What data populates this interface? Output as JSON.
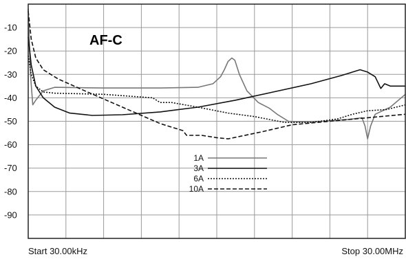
{
  "chart_data": {
    "type": "line",
    "title": "AF-C",
    "xlabel": "",
    "ylabel": "",
    "x_start_label": "Start 30.00kHz",
    "x_stop_label": "Stop 30.00MHz",
    "xlim": [
      0,
      1
    ],
    "ylim": [
      -100,
      0
    ],
    "y_ticks": [
      -10,
      -20,
      -30,
      -40,
      -50,
      -60,
      -70,
      -80,
      -90
    ],
    "grid": true,
    "legend_position": "center-bottom",
    "series": [
      {
        "name": "1A",
        "color": "#777777",
        "dash": "solid",
        "points": [
          [
            0.0,
            -2
          ],
          [
            0.006,
            -30
          ],
          [
            0.012,
            -43
          ],
          [
            0.02,
            -41
          ],
          [
            0.04,
            -37
          ],
          [
            0.07,
            -35.5
          ],
          [
            0.2,
            -35.8
          ],
          [
            0.35,
            -35.8
          ],
          [
            0.45,
            -35.5
          ],
          [
            0.49,
            -34
          ],
          [
            0.51,
            -31
          ],
          [
            0.52,
            -28
          ],
          [
            0.53,
            -24.5
          ],
          [
            0.54,
            -23
          ],
          [
            0.548,
            -24
          ],
          [
            0.56,
            -30
          ],
          [
            0.58,
            -37
          ],
          [
            0.61,
            -42
          ],
          [
            0.64,
            -44.5
          ],
          [
            0.66,
            -47
          ],
          [
            0.69,
            -50
          ],
          [
            0.72,
            -50.2
          ],
          [
            0.78,
            -50
          ],
          [
            0.85,
            -49.2
          ],
          [
            0.885,
            -48.5
          ],
          [
            0.893,
            -52
          ],
          [
            0.9,
            -57.5
          ],
          [
            0.908,
            -52
          ],
          [
            0.92,
            -47
          ],
          [
            0.96,
            -44
          ],
          [
            1.0,
            -38.5
          ]
        ]
      },
      {
        "name": "3A",
        "color": "#111111",
        "dash": "solid",
        "points": [
          [
            0.0,
            -14
          ],
          [
            0.008,
            -26
          ],
          [
            0.02,
            -35
          ],
          [
            0.04,
            -40
          ],
          [
            0.07,
            -44
          ],
          [
            0.11,
            -46.5
          ],
          [
            0.17,
            -47.5
          ],
          [
            0.25,
            -47.2
          ],
          [
            0.35,
            -46
          ],
          [
            0.45,
            -44
          ],
          [
            0.55,
            -41
          ],
          [
            0.65,
            -37.5
          ],
          [
            0.75,
            -34
          ],
          [
            0.83,
            -30.5
          ],
          [
            0.86,
            -29
          ],
          [
            0.88,
            -28
          ],
          [
            0.9,
            -29
          ],
          [
            0.92,
            -31
          ],
          [
            0.935,
            -36
          ],
          [
            0.945,
            -34
          ],
          [
            0.96,
            -35
          ],
          [
            1.0,
            -35
          ]
        ]
      },
      {
        "name": "6A",
        "color": "#111111",
        "dash": "2,2",
        "points": [
          [
            0.0,
            -22
          ],
          [
            0.008,
            -30
          ],
          [
            0.02,
            -35
          ],
          [
            0.04,
            -37.5
          ],
          [
            0.07,
            -38
          ],
          [
            0.2,
            -38.5
          ],
          [
            0.33,
            -40
          ],
          [
            0.35,
            -42
          ],
          [
            0.38,
            -42
          ],
          [
            0.45,
            -44
          ],
          [
            0.53,
            -46.5
          ],
          [
            0.6,
            -48
          ],
          [
            0.68,
            -50.5
          ],
          [
            0.75,
            -50.5
          ],
          [
            0.82,
            -49
          ],
          [
            0.86,
            -47
          ],
          [
            0.9,
            -45.5
          ],
          [
            0.95,
            -45
          ],
          [
            1.0,
            -43
          ]
        ]
      },
      {
        "name": "10A",
        "color": "#111111",
        "dash": "6,3",
        "points": [
          [
            0.0,
            -3
          ],
          [
            0.008,
            -15
          ],
          [
            0.02,
            -23
          ],
          [
            0.04,
            -28
          ],
          [
            0.08,
            -32
          ],
          [
            0.15,
            -37
          ],
          [
            0.25,
            -44
          ],
          [
            0.35,
            -51
          ],
          [
            0.41,
            -54
          ],
          [
            0.42,
            -56
          ],
          [
            0.46,
            -56
          ],
          [
            0.5,
            -57
          ],
          [
            0.53,
            -57.5
          ],
          [
            0.56,
            -56.5
          ],
          [
            0.62,
            -54.5
          ],
          [
            0.7,
            -51.5
          ],
          [
            0.8,
            -50
          ],
          [
            0.9,
            -48.5
          ],
          [
            1.0,
            -47
          ]
        ]
      }
    ]
  }
}
